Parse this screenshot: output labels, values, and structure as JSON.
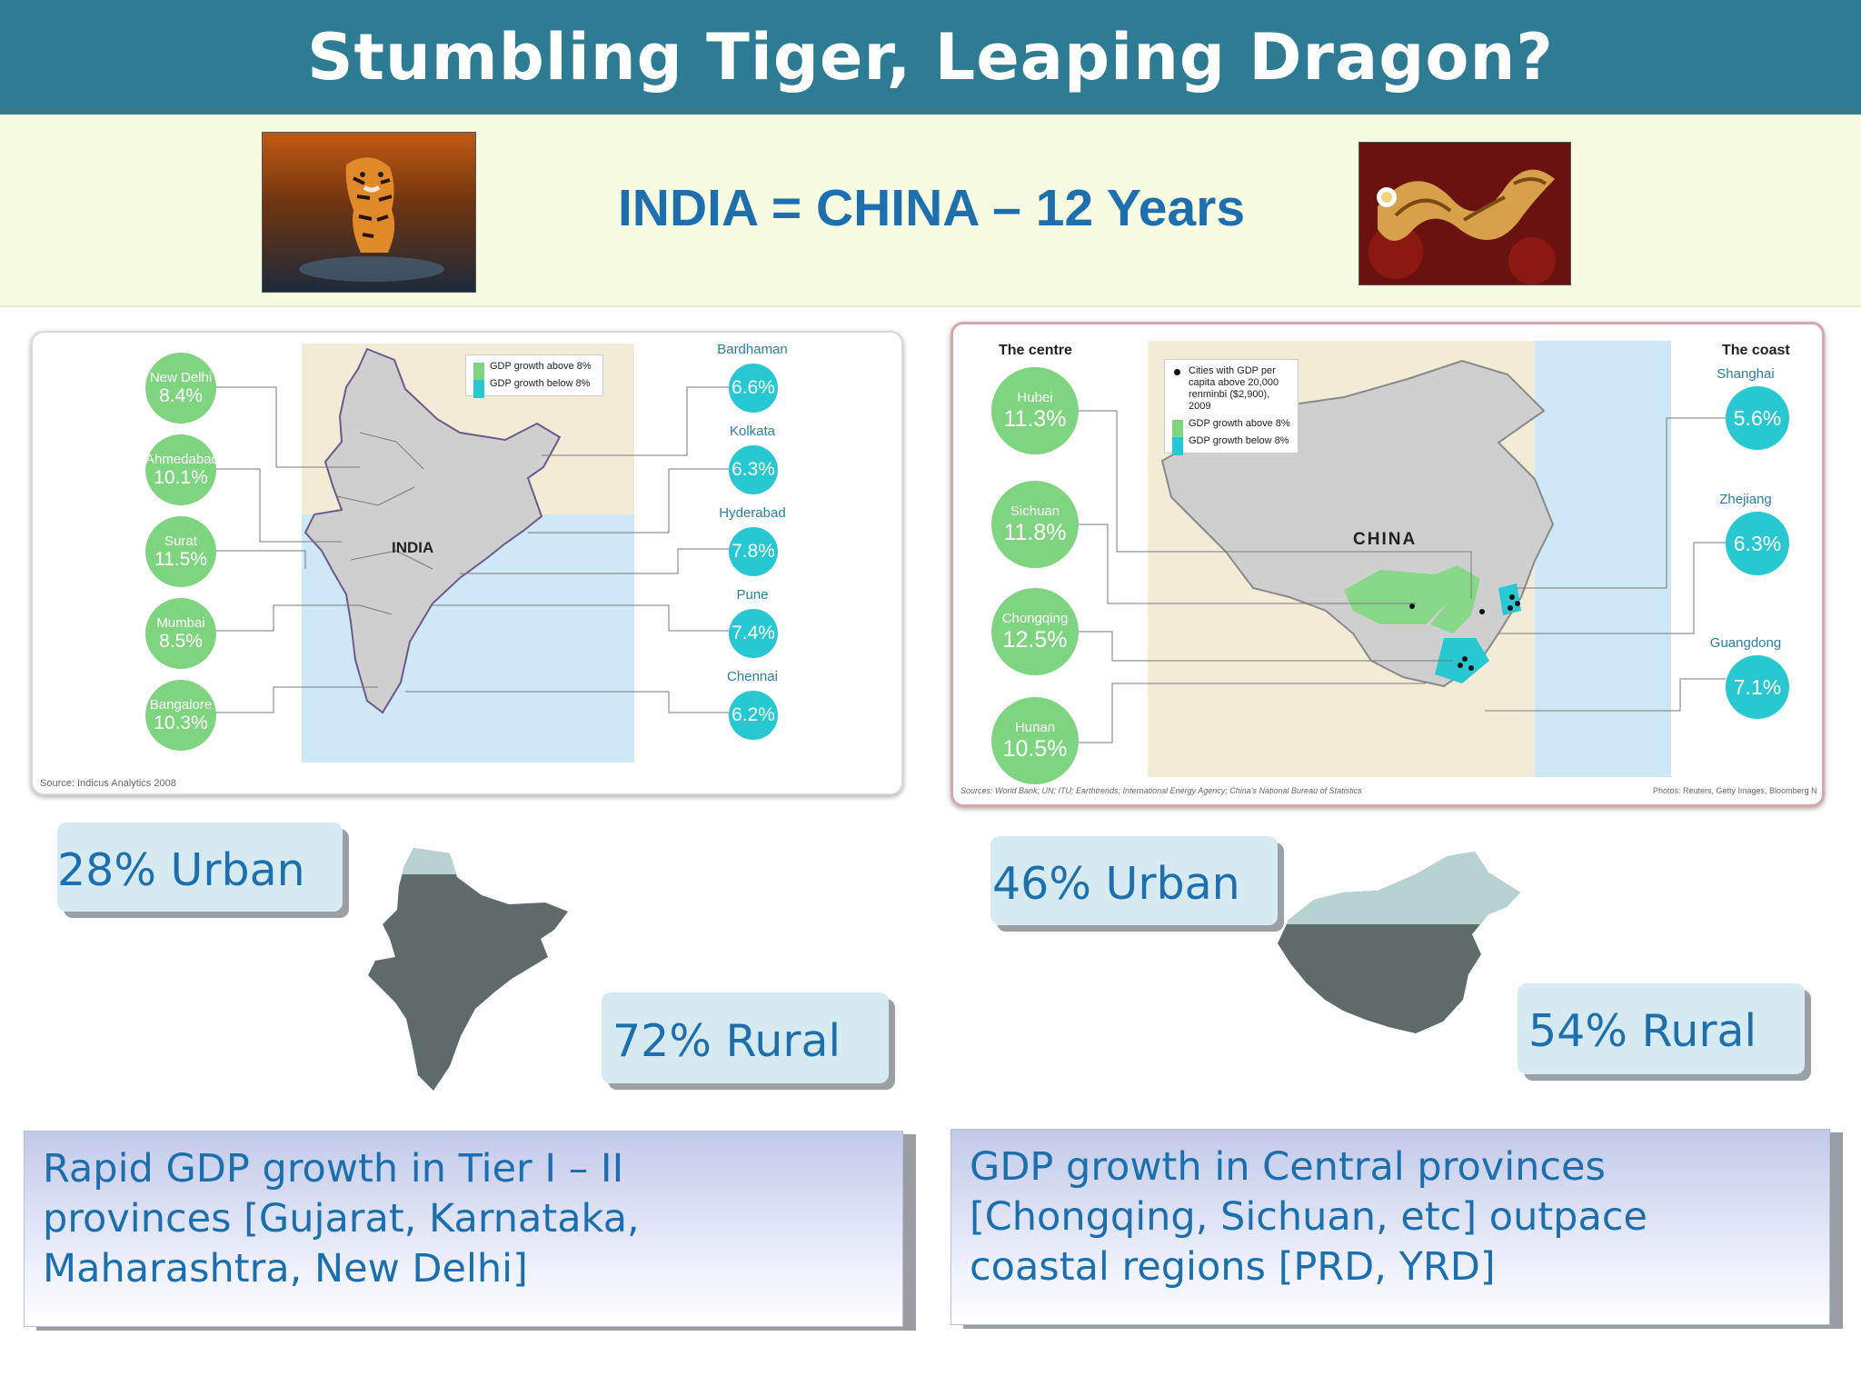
{
  "header": {
    "title": "Stumbling Tiger, Leaping Dragon?"
  },
  "band": {
    "tagline": "INDIA = CHINA – 12 Years"
  },
  "india_map": {
    "map_label": "INDIA",
    "legend": {
      "above": "GDP growth above 8%",
      "below": "GDP growth below 8%"
    },
    "left_cities": [
      {
        "name": "New Delhi",
        "value": "8.4%"
      },
      {
        "name": "Ahmedabad",
        "value": "10.1%"
      },
      {
        "name": "Surat",
        "value": "11.5%"
      },
      {
        "name": "Mumbai",
        "value": "8.5%"
      },
      {
        "name": "Bangalore",
        "value": "10.3%"
      }
    ],
    "right_cities": [
      {
        "name": "Bardhaman",
        "value": "6.6%"
      },
      {
        "name": "Kolkata",
        "value": "6.3%"
      },
      {
        "name": "Hyderabad",
        "value": "7.8%"
      },
      {
        "name": "Pune",
        "value": "7.4%"
      },
      {
        "name": "Chennai",
        "value": "6.2%"
      }
    ],
    "source": "Source: Indicus Analytics 2008"
  },
  "china_map": {
    "map_label": "CHINA",
    "centre_heading": "The centre",
    "coast_heading": "The coast",
    "legend": {
      "cities": "Cities with GDP per capita above 20,000 renminbi ($2,900), 2009",
      "above": "GDP growth above 8%",
      "below": "GDP growth below 8%"
    },
    "centre": [
      {
        "name": "Hubei",
        "value": "11.3%"
      },
      {
        "name": "Sichuan",
        "value": "11.8%"
      },
      {
        "name": "Chongqing",
        "value": "12.5%"
      },
      {
        "name": "Hunan",
        "value": "10.5%"
      }
    ],
    "coast": [
      {
        "name": "Shanghai",
        "value": "5.6%"
      },
      {
        "name": "Zhejiang",
        "value": "6.3%"
      },
      {
        "name": "Guangdong",
        "value": "7.1%"
      }
    ],
    "source": "Sources: World Bank; UN; ITU; Earthtrends; International Energy Agency; China's National Bureau of Statistics",
    "photos": "Photos: Reuters, Getty Images, Bloomberg N"
  },
  "india_stats": {
    "urban": "28% Urban",
    "rural": "72% Rural",
    "urban_fraction": 0.28
  },
  "china_stats": {
    "urban": "46% Urban",
    "rural": "54% Rural",
    "urban_fraction": 0.46
  },
  "india_summary": [
    "Rapid GDP growth in Tier I – II",
    "provinces [Gujarat, Karnataka,",
    "Maharashtra, New Delhi]"
  ],
  "china_summary": [
    "GDP growth in Central provinces",
    "[Chongqing, Sichuan, etc] outpace",
    "coastal regions [PRD, YRD]"
  ],
  "colors": {
    "header": "#2e7c93",
    "band": "#f7fbe2",
    "text_blue": "#1e6fae",
    "green": "#7fd57f",
    "cyan": "#27c8d1"
  }
}
